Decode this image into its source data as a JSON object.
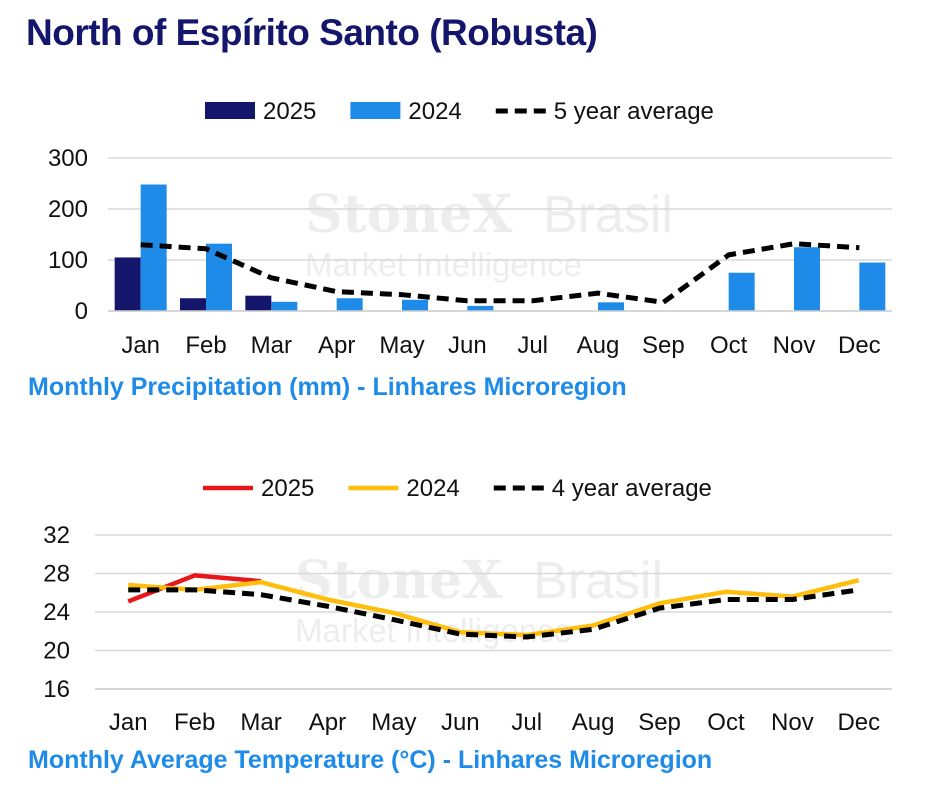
{
  "page": {
    "title": "North of Espírito Santo (Robusta)"
  },
  "watermark": {
    "brand": "StoneX",
    "suffix": "Brasil",
    "tagline": "Market Intelligence"
  },
  "chart_data": [
    {
      "type": "bar",
      "subtitle": "Monthly Precipitation (mm) - Linhares Microregion",
      "categories": [
        "Jan",
        "Feb",
        "Mar",
        "Apr",
        "May",
        "Jun",
        "Jul",
        "Aug",
        "Sep",
        "Oct",
        "Nov",
        "Dec"
      ],
      "ylim": [
        0,
        300
      ],
      "yticks": [
        0,
        100,
        200,
        300
      ],
      "grid": true,
      "legend_position": "top",
      "series": [
        {
          "name": "2025",
          "kind": "bar",
          "color": "#14166b",
          "values": [
            105,
            25,
            30,
            null,
            null,
            null,
            null,
            null,
            null,
            null,
            null,
            null
          ]
        },
        {
          "name": "2024",
          "kind": "bar",
          "color": "#1f8be8",
          "values": [
            248,
            132,
            18,
            25,
            22,
            10,
            0,
            17,
            0,
            75,
            125,
            95
          ]
        },
        {
          "name": "5 year average",
          "kind": "line-dashed",
          "color": "#000000",
          "values": [
            130,
            122,
            65,
            38,
            32,
            20,
            20,
            35,
            17,
            110,
            132,
            124
          ]
        }
      ]
    },
    {
      "type": "line",
      "subtitle": "Monthly Average Temperature (°C) - Linhares Microregion",
      "categories": [
        "Jan",
        "Feb",
        "Mar",
        "Apr",
        "May",
        "Jun",
        "Jul",
        "Aug",
        "Sep",
        "Oct",
        "Nov",
        "Dec"
      ],
      "ylim": [
        16,
        32
      ],
      "yticks": [
        16,
        20,
        24,
        28,
        32
      ],
      "grid": true,
      "legend_position": "top",
      "series": [
        {
          "name": "2025",
          "kind": "line",
          "color": "#e8161b",
          "values": [
            25.1,
            27.8,
            27.2,
            null,
            null,
            null,
            null,
            null,
            null,
            null,
            null,
            null
          ]
        },
        {
          "name": "2024",
          "kind": "line",
          "color": "#ffbe0b",
          "values": [
            26.8,
            26.3,
            27.1,
            25.3,
            23.9,
            21.9,
            21.6,
            22.6,
            24.9,
            26.1,
            25.6,
            27.3
          ]
        },
        {
          "name": "4 year average",
          "kind": "line-dashed",
          "color": "#000000",
          "values": [
            26.3,
            26.3,
            25.8,
            24.6,
            23.2,
            21.7,
            21.4,
            22.2,
            24.4,
            25.3,
            25.3,
            26.3
          ]
        }
      ]
    }
  ]
}
